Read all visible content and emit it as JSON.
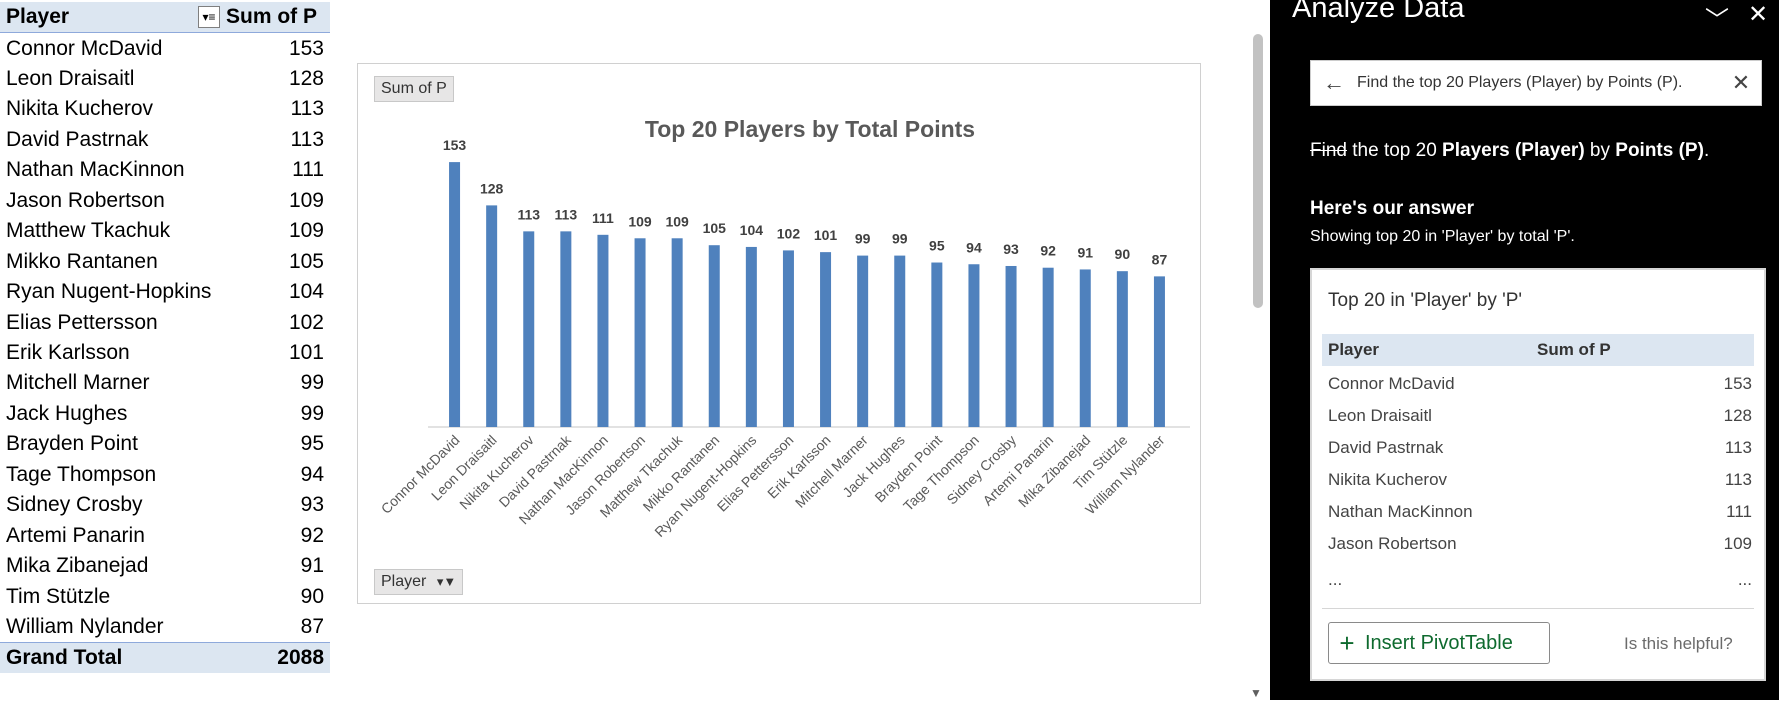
{
  "pivot": {
    "header_player": "Player",
    "header_sum": "Sum of P",
    "filter_icon": "filter-sort-icon",
    "rows": [
      {
        "name": "Connor McDavid",
        "value": "153"
      },
      {
        "name": "Leon Draisaitl",
        "value": "128"
      },
      {
        "name": "Nikita Kucherov",
        "value": "113"
      },
      {
        "name": "David Pastrnak",
        "value": "113"
      },
      {
        "name": "Nathan MacKinnon",
        "value": "111"
      },
      {
        "name": "Jason Robertson",
        "value": "109"
      },
      {
        "name": "Matthew Tkachuk",
        "value": "109"
      },
      {
        "name": "Mikko Rantanen",
        "value": "105"
      },
      {
        "name": "Ryan Nugent-Hopkins",
        "value": "104"
      },
      {
        "name": "Elias Pettersson",
        "value": "102"
      },
      {
        "name": "Erik Karlsson",
        "value": "101"
      },
      {
        "name": "Mitchell Marner",
        "value": "99"
      },
      {
        "name": "Jack Hughes",
        "value": "99"
      },
      {
        "name": "Brayden Point",
        "value": "95"
      },
      {
        "name": "Tage Thompson",
        "value": "94"
      },
      {
        "name": "Sidney Crosby",
        "value": "93"
      },
      {
        "name": "Artemi Panarin",
        "value": "92"
      },
      {
        "name": "Mika Zibanejad",
        "value": "91"
      },
      {
        "name": "Tim Stützle",
        "value": "90"
      },
      {
        "name": "William Nylander",
        "value": "87"
      }
    ],
    "total_label": "Grand Total",
    "total_value": "2088"
  },
  "chart_buttons": {
    "sum_field": "Sum of P",
    "axis_field": "Player"
  },
  "chart_data": {
    "type": "bar",
    "title": "Top 20 Players by Total Points",
    "xlabel": "",
    "ylabel": "",
    "categories": [
      "Connor McDavid",
      "Leon Draisaitl",
      "Nikita Kucherov",
      "David Pastrnak",
      "Nathan MacKinnon",
      "Jason Robertson",
      "Matthew Tkachuk",
      "Mikko Rantanen",
      "Ryan Nugent-Hopkins",
      "Elias Pettersson",
      "Erik Karlsson",
      "Mitchell Marner",
      "Jack Hughes",
      "Brayden Point",
      "Tage Thompson",
      "Sidney Crosby",
      "Artemi Panarin",
      "Mika Zibanejad",
      "Tim Stützle",
      "William Nylander"
    ],
    "values": [
      153,
      128,
      113,
      113,
      111,
      109,
      109,
      105,
      104,
      102,
      101,
      99,
      99,
      95,
      94,
      93,
      92,
      91,
      90,
      87
    ],
    "ylim": [
      0,
      160
    ],
    "grid": false,
    "data_labels": true,
    "bar_color": "#4f81bd"
  },
  "pane": {
    "title": "Analyze Data",
    "collapse_icon": "chevron-down-icon",
    "close_icon": "close-icon",
    "query_text": "Find the top 20 Players (Player) by Points (P).",
    "explain_strike": "Find",
    "explain_part1": " the top 20 ",
    "explain_bold1": "Players (Player)",
    "explain_part2": " by ",
    "explain_bold2": "Points (P)",
    "explain_part3": ".",
    "answer_heading": "Here's our answer",
    "answer_sub": "Showing top 20 in 'Player' by total 'P'.",
    "card_title": "Top 20 in 'Player' by 'P'",
    "col_player": "Player",
    "col_sum": "Sum of P",
    "rows": [
      {
        "name": "Connor McDavid",
        "value": "153"
      },
      {
        "name": "Leon Draisaitl",
        "value": "128"
      },
      {
        "name": "David Pastrnak",
        "value": "113"
      },
      {
        "name": "Nikita Kucherov",
        "value": "113"
      },
      {
        "name": "Nathan MacKinnon",
        "value": "111"
      },
      {
        "name": "Jason Robertson",
        "value": "109"
      }
    ],
    "ellipsis_left": "...",
    "ellipsis_right": "...",
    "insert_label": "Insert PivotTable",
    "helpful": "Is this helpful?"
  }
}
